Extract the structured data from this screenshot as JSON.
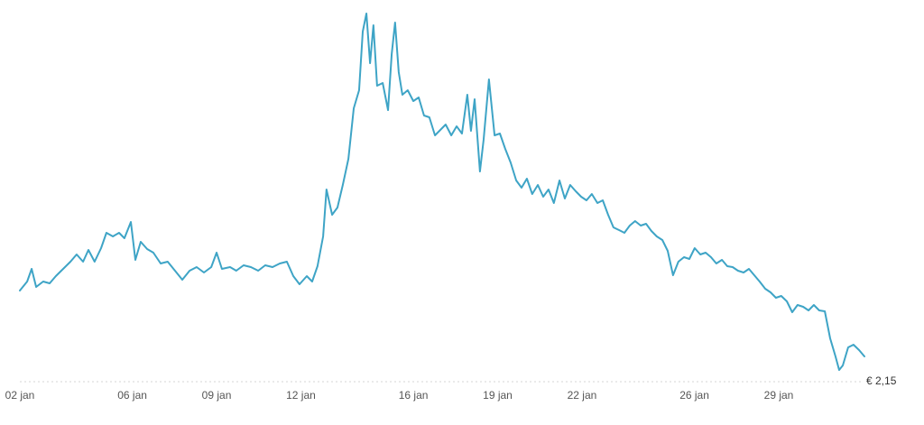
{
  "chart_data": {
    "type": "line",
    "color": "#3ea4c6",
    "xlim": [
      2,
      32.05
    ],
    "ylim": [
      2.15,
      3.4
    ],
    "xticks": [
      {
        "value": 2,
        "label": "02 jan"
      },
      {
        "value": 6,
        "label": "06 jan"
      },
      {
        "value": 9,
        "label": "09 jan"
      },
      {
        "value": 12,
        "label": "12 jan"
      },
      {
        "value": 16,
        "label": "16 jan"
      },
      {
        "value": 19,
        "label": "19 jan"
      },
      {
        "value": 22,
        "label": "22 jan"
      },
      {
        "value": 26,
        "label": "26 jan"
      },
      {
        "value": 29,
        "label": "29 jan"
      }
    ],
    "yticks": [
      {
        "value": 2.15,
        "label": "€ 2,15"
      }
    ],
    "x": [
      2.0,
      2.26,
      2.42,
      2.58,
      2.83,
      3.06,
      3.28,
      3.54,
      3.8,
      4.02,
      4.25,
      4.44,
      4.66,
      4.89,
      5.08,
      5.31,
      5.53,
      5.72,
      5.95,
      6.11,
      6.3,
      6.53,
      6.75,
      7.01,
      7.26,
      7.52,
      7.78,
      8.04,
      8.29,
      8.55,
      8.81,
      9.0,
      9.19,
      9.48,
      9.7,
      9.96,
      10.22,
      10.48,
      10.73,
      10.99,
      11.25,
      11.5,
      11.73,
      11.95,
      12.21,
      12.4,
      12.59,
      12.79,
      12.91,
      13.11,
      13.3,
      13.49,
      13.69,
      13.88,
      14.07,
      14.2,
      14.33,
      14.46,
      14.58,
      14.71,
      14.91,
      15.1,
      15.23,
      15.35,
      15.48,
      15.61,
      15.8,
      16.0,
      16.19,
      16.38,
      16.57,
      16.77,
      16.96,
      17.15,
      17.35,
      17.54,
      17.73,
      17.92,
      18.05,
      18.18,
      18.37,
      18.5,
      18.69,
      18.89,
      19.08,
      19.27,
      19.46,
      19.66,
      19.85,
      20.04,
      20.23,
      20.43,
      20.62,
      20.81,
      21.0,
      21.2,
      21.39,
      21.58,
      21.78,
      21.97,
      22.16,
      22.35,
      22.55,
      22.74,
      22.93,
      23.12,
      23.32,
      23.51,
      23.7,
      23.89,
      24.09,
      24.28,
      24.47,
      24.66,
      24.86,
      25.05,
      25.24,
      25.43,
      25.63,
      25.82,
      26.01,
      26.21,
      26.4,
      26.59,
      26.78,
      26.98,
      27.17,
      27.36,
      27.55,
      27.75,
      27.94,
      28.13,
      28.32,
      28.52,
      28.71,
      28.9,
      29.09,
      29.29,
      29.48,
      29.67,
      29.87,
      30.06,
      30.25,
      30.44,
      30.64,
      30.83,
      31.02,
      31.15,
      31.28,
      31.47,
      31.66,
      31.86,
      32.05
    ],
    "values": [
      2.453,
      2.483,
      2.525,
      2.465,
      2.483,
      2.477,
      2.501,
      2.525,
      2.549,
      2.573,
      2.549,
      2.588,
      2.549,
      2.594,
      2.645,
      2.633,
      2.645,
      2.627,
      2.681,
      2.555,
      2.615,
      2.591,
      2.579,
      2.543,
      2.549,
      2.519,
      2.489,
      2.519,
      2.531,
      2.513,
      2.531,
      2.579,
      2.525,
      2.531,
      2.519,
      2.537,
      2.531,
      2.519,
      2.537,
      2.531,
      2.543,
      2.549,
      2.501,
      2.474,
      2.501,
      2.483,
      2.534,
      2.633,
      2.789,
      2.705,
      2.729,
      2.804,
      2.891,
      3.059,
      3.119,
      3.314,
      3.374,
      3.209,
      3.335,
      3.134,
      3.143,
      3.053,
      3.239,
      3.344,
      3.179,
      3.104,
      3.119,
      3.083,
      3.095,
      3.035,
      3.029,
      2.969,
      2.987,
      3.005,
      2.969,
      2.999,
      2.975,
      3.104,
      2.984,
      3.089,
      2.849,
      2.954,
      3.155,
      2.969,
      2.975,
      2.924,
      2.879,
      2.819,
      2.795,
      2.825,
      2.774,
      2.804,
      2.765,
      2.789,
      2.744,
      2.819,
      2.759,
      2.804,
      2.783,
      2.765,
      2.753,
      2.774,
      2.744,
      2.753,
      2.705,
      2.663,
      2.654,
      2.645,
      2.669,
      2.684,
      2.669,
      2.675,
      2.651,
      2.633,
      2.621,
      2.585,
      2.504,
      2.549,
      2.564,
      2.558,
      2.594,
      2.573,
      2.579,
      2.564,
      2.543,
      2.555,
      2.534,
      2.531,
      2.519,
      2.513,
      2.525,
      2.504,
      2.483,
      2.459,
      2.447,
      2.429,
      2.435,
      2.417,
      2.381,
      2.405,
      2.399,
      2.387,
      2.405,
      2.387,
      2.384,
      2.294,
      2.234,
      2.189,
      2.204,
      2.264,
      2.273,
      2.255,
      2.234
    ]
  }
}
